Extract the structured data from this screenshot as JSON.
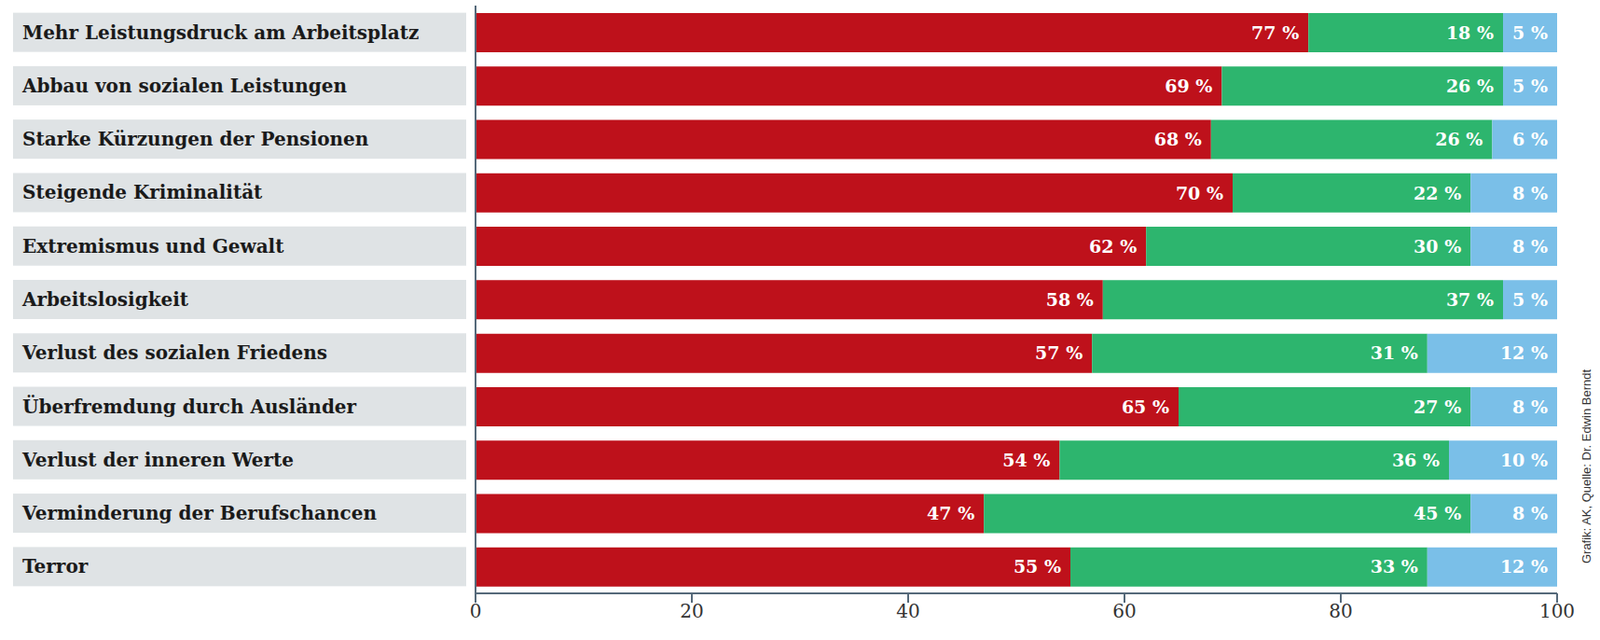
{
  "chart_data": {
    "type": "bar",
    "orientation": "horizontal",
    "stacked": true,
    "data_labels": true,
    "grid": false,
    "categories": [
      "Mehr Leistungsdruck am Arbeitsplatz",
      "Abbau von sozialen Leistungen",
      "Starke Kürzungen der Pensionen",
      "Steigende Kriminalität",
      "Extremismus und Gewalt",
      "Arbeitslosigkeit",
      "Verlust des sozialen Friedens",
      "Überfremdung durch Ausländer",
      "Verlust der inneren Werte",
      "Verminderung der Berufschancen",
      "Terror"
    ],
    "series": [
      {
        "color": "#be111b",
        "values": [
          77,
          69,
          68,
          70,
          62,
          58,
          57,
          65,
          54,
          47,
          55
        ],
        "value_labels": [
          "77 %",
          "69 %",
          "68 %",
          "70 %",
          "62 %",
          "58 %",
          "57 %",
          "65 %",
          "54 %",
          "47 %",
          "55 %"
        ]
      },
      {
        "color": "#2db56e",
        "values": [
          18,
          26,
          26,
          22,
          30,
          37,
          31,
          27,
          36,
          45,
          33
        ],
        "value_labels": [
          "18 %",
          "26 %",
          "26 %",
          "22 %",
          "30 %",
          "37 %",
          "31 %",
          "27 %",
          "36 %",
          "45 %",
          "33 %"
        ]
      },
      {
        "color": "#7abfe8",
        "values": [
          5,
          5,
          6,
          8,
          8,
          5,
          12,
          8,
          10,
          8,
          12
        ],
        "value_labels": [
          "5 %",
          "5 %",
          "6 %",
          "8 %",
          "8 %",
          "5 %",
          "12 %",
          "8 %",
          "10 %",
          "8 %",
          "12 %"
        ]
      }
    ],
    "xlim": [
      0,
      100
    ],
    "xticks": [
      0,
      20,
      40,
      60,
      80,
      100
    ],
    "annotations": [
      "Grafik: AK, Quelle: Dr. Edwin Berndt"
    ]
  }
}
